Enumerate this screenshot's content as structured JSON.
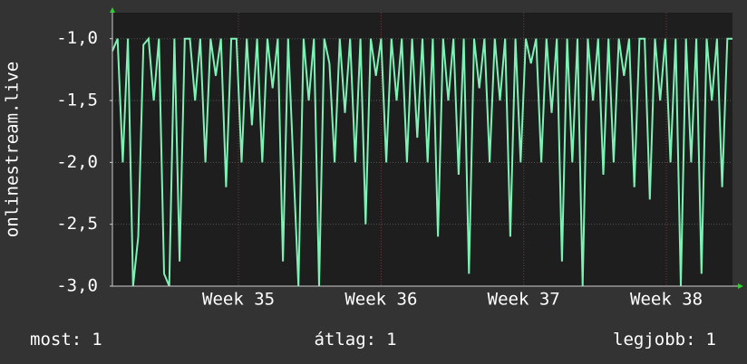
{
  "chart_data": {
    "type": "line",
    "ylabel": "onlinestream.live",
    "x": [
      0,
      0.25,
      0.5,
      0.75,
      1,
      1.25,
      1.5,
      1.75,
      2,
      2.25,
      2.5,
      2.75,
      3,
      3.25,
      3.5,
      3.75,
      4,
      4.25,
      4.5,
      4.75,
      5,
      5.25,
      5.5,
      5.75,
      6,
      6.25,
      6.5,
      6.75,
      7,
      7.25,
      7.5,
      7.75,
      8,
      8.25,
      8.5,
      8.75,
      9,
      9.25,
      9.5,
      9.75,
      10,
      10.25,
      10.5,
      10.75,
      11,
      11.25,
      11.5,
      11.75,
      12,
      12.25,
      12.5,
      12.75,
      13,
      13.25,
      13.5,
      13.75,
      14,
      14.25,
      14.5,
      14.75,
      15,
      15.25,
      15.5,
      15.75,
      16,
      16.25,
      16.5,
      16.75,
      17,
      17.25,
      17.5,
      17.75,
      18,
      18.25,
      18.5,
      18.75,
      19,
      19.25,
      19.5,
      19.75,
      20,
      20.25,
      20.5,
      20.75,
      21,
      21.25,
      21.5,
      21.75,
      22,
      22.25,
      22.5,
      22.75,
      23,
      23.25,
      23.5,
      23.75,
      24,
      24.25,
      24.5,
      24.75,
      25,
      25.25,
      25.5,
      25.75,
      26,
      26.25,
      26.5,
      26.75,
      27,
      27.25,
      27.5,
      27.75,
      28,
      28.25,
      28.5,
      28.75,
      29,
      29.25,
      29.5,
      29.75,
      30
    ],
    "series": [
      {
        "color": "#7df2b5",
        "values": [
          -1.1,
          -1,
          -2,
          -1,
          -3,
          -2.6,
          -1.05,
          -1,
          -1.5,
          -1,
          -2.9,
          -3,
          -1,
          -2.8,
          -1,
          -1,
          -1.5,
          -1,
          -2,
          -1,
          -1.3,
          -1,
          -2.2,
          -1,
          -1,
          -2,
          -1,
          -1.7,
          -1,
          -2,
          -1,
          -1.4,
          -1,
          -2.8,
          -1,
          -2,
          -3,
          -1,
          -1.5,
          -1,
          -3,
          -1,
          -1.2,
          -2,
          -1,
          -1.6,
          -1,
          -2,
          -1,
          -2.5,
          -1,
          -1.3,
          -1,
          -2,
          -1,
          -1.5,
          -1,
          -2,
          -1,
          -1.8,
          -1,
          -2,
          -1,
          -2.6,
          -1,
          -1.5,
          -1,
          -2.1,
          -1,
          -2.9,
          -1,
          -1.4,
          -1,
          -2,
          -1,
          -1.5,
          -1,
          -2.6,
          -1,
          -2,
          -1,
          -1.2,
          -1,
          -2,
          -1,
          -1.6,
          -1,
          -2.8,
          -1,
          -2,
          -1,
          -3,
          -1,
          -1.5,
          -1,
          -2.1,
          -1,
          -2,
          -1,
          -1.3,
          -1,
          -2.2,
          -1,
          -1,
          -2.3,
          -1,
          -1.5,
          -1,
          -2,
          -1,
          -3,
          -1,
          -2,
          -1,
          -2.9,
          -1,
          -1.5,
          -1,
          -2.2,
          -1,
          -1
        ]
      }
    ],
    "xlim": [
      0,
      30
    ],
    "xticks": [
      {
        "value": 6.1,
        "label": "Week 35"
      },
      {
        "value": 13,
        "label": "Week 36"
      },
      {
        "value": 19.9,
        "label": "Week 37"
      },
      {
        "value": 26.8,
        "label": "Week 38"
      }
    ],
    "ylim": [
      -3,
      -0.79
    ],
    "yticks": [
      {
        "value": -3,
        "label": "-3,0"
      },
      {
        "value": -2.5,
        "label": "-2,5"
      },
      {
        "value": -2,
        "label": "-2,0"
      },
      {
        "value": -1.5,
        "label": "-1,5"
      },
      {
        "value": -1,
        "label": "-1,0"
      }
    ],
    "grid": true,
    "stats": [
      {
        "label": "most:",
        "value": 1
      },
      {
        "label": "átlag:",
        "value": 1
      },
      {
        "label": "legjobb:",
        "value": 1
      }
    ]
  }
}
